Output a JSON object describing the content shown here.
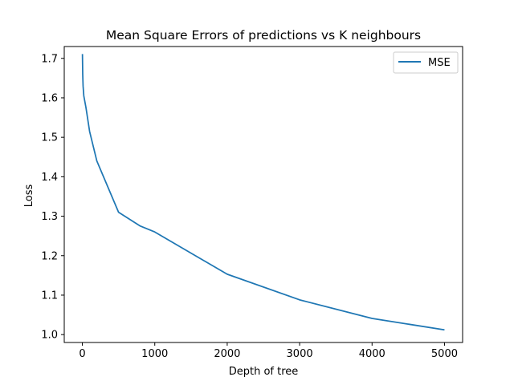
{
  "chart_data": {
    "type": "line",
    "title": "Mean Square Errors of predictions vs K neighbours",
    "xlabel": "Depth of tree",
    "ylabel": "Loss",
    "xlim": [
      -250,
      5250
    ],
    "ylim": [
      0.98,
      1.73
    ],
    "xticks": [
      0,
      1000,
      2000,
      3000,
      4000,
      5000
    ],
    "yticks": [
      1.0,
      1.1,
      1.2,
      1.3,
      1.4,
      1.5,
      1.6,
      1.7
    ],
    "grid": false,
    "legend_position": "top-right",
    "series": [
      {
        "name": "MSE",
        "color": "#1f77b4",
        "x": [
          1,
          5,
          10,
          20,
          50,
          100,
          200,
          500,
          800,
          1000,
          2000,
          3000,
          4000,
          5000
        ],
        "y": [
          1.711,
          1.66,
          1.63,
          1.605,
          1.575,
          1.515,
          1.44,
          1.31,
          1.275,
          1.26,
          1.153,
          1.088,
          1.041,
          1.012
        ]
      }
    ]
  }
}
